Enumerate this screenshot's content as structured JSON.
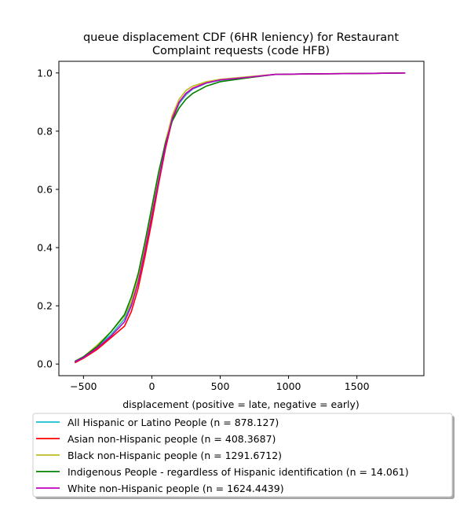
{
  "chart_data": {
    "type": "line",
    "title_lines": [
      "queue displacement CDF (6HR leniency) for Restaurant",
      "Complaint  requests (code HFB)"
    ],
    "xlabel": "displacement (positive = late, negative = early)",
    "ylabel": "",
    "xlim": [
      -680,
      1990
    ],
    "ylim": [
      -0.04,
      1.04
    ],
    "xticks": [
      -500,
      0,
      500,
      1000,
      1500
    ],
    "yticks": [
      0.0,
      0.2,
      0.4,
      0.6,
      0.8,
      1.0
    ],
    "xtick_labels": [
      "−500",
      "0",
      "500",
      "1000",
      "1500"
    ],
    "ytick_labels": [
      "0.0",
      "0.2",
      "0.4",
      "0.6",
      "0.8",
      "1.0"
    ],
    "grid": false,
    "legend_position": "below-plot",
    "series": [
      {
        "name": "All Hispanic or Latino People (n = 878.127)",
        "color": "#17becf",
        "x": [
          -560,
          -500,
          -400,
          -300,
          -200,
          -150,
          -100,
          -50,
          0,
          50,
          100,
          150,
          200,
          250,
          300,
          400,
          500,
          700,
          900,
          1200,
          1500,
          1850
        ],
        "y": [
          0.01,
          0.025,
          0.06,
          0.1,
          0.155,
          0.21,
          0.29,
          0.4,
          0.52,
          0.64,
          0.76,
          0.84,
          0.895,
          0.925,
          0.945,
          0.965,
          0.975,
          0.985,
          0.995,
          0.997,
          0.998,
          1.0
        ]
      },
      {
        "name": "Asian non-Hispanic people (n = 408.3687)",
        "color": "#ff0000",
        "x": [
          -560,
          -500,
          -400,
          -300,
          -200,
          -150,
          -100,
          -50,
          0,
          50,
          100,
          150,
          200,
          250,
          300,
          400,
          500,
          700,
          900,
          1200,
          1500,
          1850
        ],
        "y": [
          0.005,
          0.02,
          0.05,
          0.09,
          0.13,
          0.18,
          0.26,
          0.37,
          0.49,
          0.62,
          0.74,
          0.84,
          0.9,
          0.93,
          0.948,
          0.967,
          0.977,
          0.986,
          0.995,
          0.997,
          0.998,
          1.0
        ]
      },
      {
        "name": "Black non-Hispanic people (n = 1291.6712)",
        "color": "#bcbd22",
        "x": [
          -560,
          -500,
          -400,
          -300,
          -200,
          -150,
          -100,
          -50,
          0,
          50,
          100,
          150,
          200,
          250,
          300,
          400,
          500,
          700,
          900,
          1200,
          1500,
          1850
        ],
        "y": [
          0.01,
          0.025,
          0.065,
          0.11,
          0.165,
          0.215,
          0.295,
          0.405,
          0.525,
          0.645,
          0.765,
          0.855,
          0.91,
          0.94,
          0.955,
          0.97,
          0.978,
          0.987,
          0.995,
          0.997,
          0.998,
          1.0
        ]
      },
      {
        "name": "Indigenous People - regardless of Hispanic identification (n = 14.061)",
        "color": "#008000",
        "x": [
          -560,
          -500,
          -400,
          -300,
          -200,
          -150,
          -100,
          -50,
          0,
          50,
          100,
          150,
          200,
          250,
          300,
          400,
          500,
          700,
          900,
          1200,
          1500,
          1850
        ],
        "y": [
          0.01,
          0.025,
          0.06,
          0.11,
          0.17,
          0.23,
          0.31,
          0.42,
          0.54,
          0.66,
          0.76,
          0.835,
          0.88,
          0.91,
          0.93,
          0.955,
          0.97,
          0.983,
          0.995,
          0.997,
          0.998,
          1.0
        ]
      },
      {
        "name": "White non-Hispanic people (n = 1624.4439)",
        "color": "#bf00bf",
        "x": [
          -560,
          -500,
          -400,
          -300,
          -200,
          -150,
          -100,
          -50,
          0,
          50,
          100,
          150,
          200,
          250,
          300,
          400,
          500,
          700,
          900,
          1200,
          1500,
          1850
        ],
        "y": [
          0.008,
          0.022,
          0.055,
          0.095,
          0.145,
          0.2,
          0.28,
          0.39,
          0.51,
          0.63,
          0.75,
          0.845,
          0.9,
          0.93,
          0.947,
          0.966,
          0.976,
          0.985,
          0.995,
          0.997,
          0.998,
          1.0
        ]
      }
    ]
  }
}
